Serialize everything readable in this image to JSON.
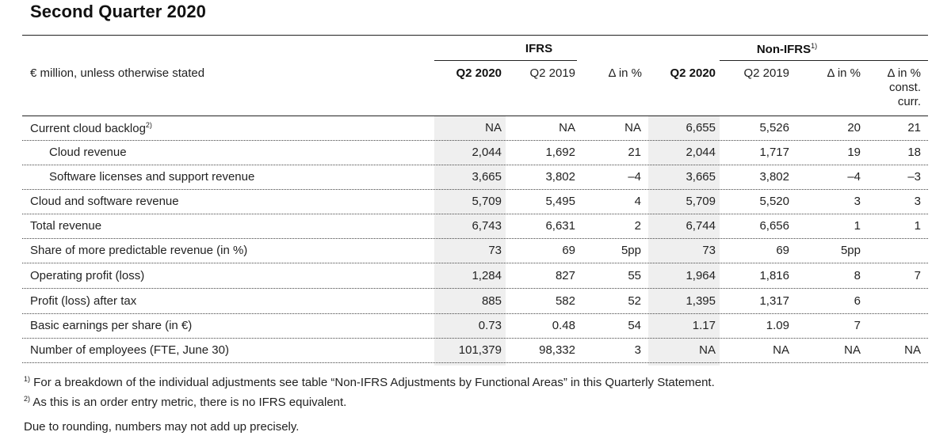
{
  "title": "Second Quarter 2020",
  "groups": {
    "ifrs": "IFRS",
    "nonifrs": "Non-IFRS",
    "nonifrs_sup": "1)"
  },
  "header": {
    "unit_label": "€ million, unless otherwise stated",
    "ifrs_q2_2020": "Q2 2020",
    "ifrs_q2_2019": "Q2 2019",
    "ifrs_delta": "Δ in %",
    "non_q2_2020": "Q2 2020",
    "non_q2_2019": "Q2 2019",
    "non_delta": "Δ in %",
    "non_const_1": "Δ in %",
    "non_const_2": "const.",
    "non_const_3": "curr."
  },
  "rows": [
    {
      "label": "Current cloud backlog",
      "sup": "2)",
      "indent": false,
      "values": [
        "NA",
        "NA",
        "NA",
        "6,655",
        "5,526",
        "20",
        "21"
      ]
    },
    {
      "label": "Cloud revenue",
      "sup": "",
      "indent": true,
      "values": [
        "2,044",
        "1,692",
        "21",
        "2,044",
        "1,717",
        "19",
        "18"
      ]
    },
    {
      "label": "Software licenses and support revenue",
      "sup": "",
      "indent": true,
      "values": [
        "3,665",
        "3,802",
        "–4",
        "3,665",
        "3,802",
        "–4",
        "–3"
      ]
    },
    {
      "label": "Cloud and software revenue",
      "sup": "",
      "indent": false,
      "values": [
        "5,709",
        "5,495",
        "4",
        "5,709",
        "5,520",
        "3",
        "3"
      ]
    },
    {
      "label": "Total revenue",
      "sup": "",
      "indent": false,
      "values": [
        "6,743",
        "6,631",
        "2",
        "6,744",
        "6,656",
        "1",
        "1"
      ]
    },
    {
      "label": "Share of more predictable revenue (in %)",
      "sup": "",
      "indent": false,
      "values": [
        "73",
        "69",
        "5pp",
        "73",
        "69",
        "5pp",
        ""
      ]
    },
    {
      "label": "Operating profit (loss)",
      "sup": "",
      "indent": false,
      "values": [
        "1,284",
        "827",
        "55",
        "1,964",
        "1,816",
        "8",
        "7"
      ]
    },
    {
      "label": "Profit (loss) after tax",
      "sup": "",
      "indent": false,
      "values": [
        "885",
        "582",
        "52",
        "1,395",
        "1,317",
        "6",
        ""
      ]
    },
    {
      "label": "Basic earnings per share (in €)",
      "sup": "",
      "indent": false,
      "values": [
        "0.73",
        "0.48",
        "54",
        "1.17",
        "1.09",
        "7",
        ""
      ]
    },
    {
      "label": "Number of employees (FTE, June 30)",
      "sup": "",
      "indent": false,
      "values": [
        "101,379",
        "98,332",
        "3",
        "NA",
        "NA",
        "NA",
        "NA"
      ]
    }
  ],
  "footnotes": {
    "fn1_mark": "1)",
    "fn1_text": " For a breakdown of the individual adjustments see table “Non-IFRS Adjustments by Functional Areas” in this Quarterly Statement.",
    "fn2_mark": "2)",
    "fn2_text": " As this is an order entry metric, there is no IFRS equivalent.",
    "rounding": "Due to rounding, numbers may not add up precisely."
  }
}
